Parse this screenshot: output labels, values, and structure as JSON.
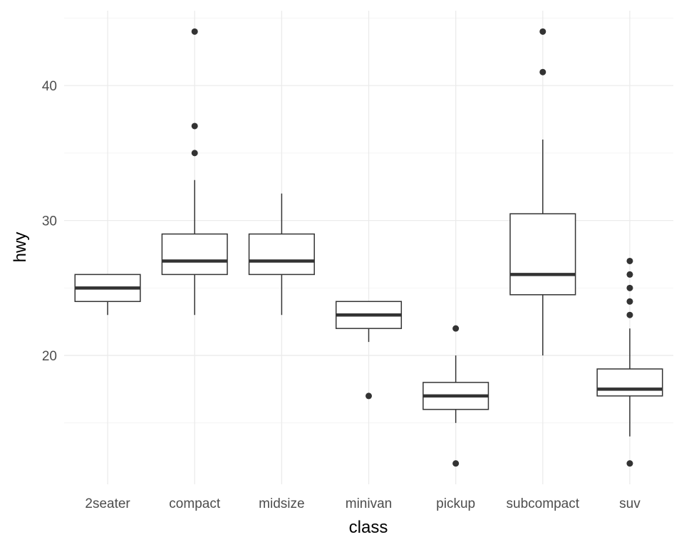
{
  "chart_data": {
    "type": "boxplot",
    "title": "",
    "xlabel": "class",
    "ylabel": "hwy",
    "ylim": [
      10.45,
      45.55
    ],
    "yticks": [
      20,
      30,
      40
    ],
    "yminor": [
      15,
      25,
      35,
      45
    ],
    "grid": true,
    "categories": [
      "2seater",
      "compact",
      "midsize",
      "minivan",
      "pickup",
      "subcompact",
      "suv"
    ],
    "boxes": [
      {
        "category": "2seater",
        "lower": 23,
        "q1": 24,
        "median": 25,
        "q3": 26,
        "upper": 26,
        "outliers": []
      },
      {
        "category": "compact",
        "lower": 23,
        "q1": 26,
        "median": 27,
        "q3": 29,
        "upper": 33,
        "outliers": [
          35,
          37,
          44
        ]
      },
      {
        "category": "midsize",
        "lower": 23,
        "q1": 26,
        "median": 27,
        "q3": 29,
        "upper": 32,
        "outliers": []
      },
      {
        "category": "minivan",
        "lower": 21,
        "q1": 22,
        "median": 23,
        "q3": 24,
        "upper": 24,
        "outliers": [
          17
        ]
      },
      {
        "category": "pickup",
        "lower": 15,
        "q1": 16,
        "median": 17,
        "q3": 18,
        "upper": 20,
        "outliers": [
          12,
          22
        ]
      },
      {
        "category": "subcompact",
        "lower": 20,
        "q1": 24.5,
        "median": 26,
        "q3": 30.5,
        "upper": 36,
        "outliers": [
          41,
          44
        ]
      },
      {
        "category": "suv",
        "lower": 14,
        "q1": 17,
        "median": 17.5,
        "q3": 19,
        "upper": 22,
        "outliers": [
          12,
          23,
          24,
          25,
          26,
          27
        ]
      }
    ],
    "colors": {
      "box": "#333333",
      "grid_major": "#ebebeb",
      "grid_minor": "#f4f4f4"
    }
  }
}
